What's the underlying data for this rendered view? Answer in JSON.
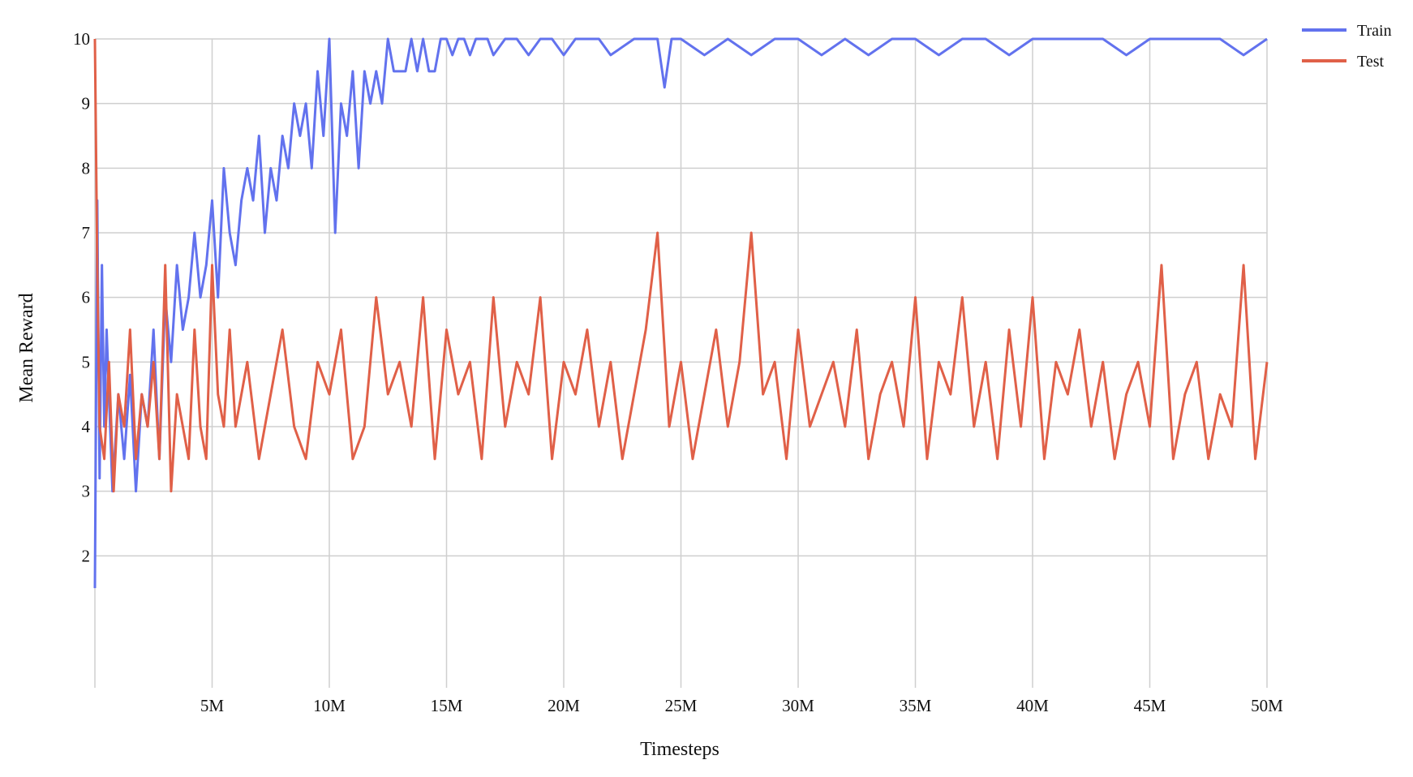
{
  "chart_data": {
    "type": "line",
    "xlabel": "Timesteps",
    "ylabel": "Mean Reward",
    "xlim": [
      0,
      50000000
    ],
    "ylim": [
      1,
      10
    ],
    "x_ticks": [
      {
        "value": 5000000,
        "label": "5M"
      },
      {
        "value": 10000000,
        "label": "10M"
      },
      {
        "value": 15000000,
        "label": "15M"
      },
      {
        "value": 20000000,
        "label": "20M"
      },
      {
        "value": 25000000,
        "label": "25M"
      },
      {
        "value": 30000000,
        "label": "30M"
      },
      {
        "value": 35000000,
        "label": "35M"
      },
      {
        "value": 40000000,
        "label": "40M"
      },
      {
        "value": 45000000,
        "label": "45M"
      },
      {
        "value": 50000000,
        "label": "50M"
      }
    ],
    "y_ticks": [
      {
        "value": 2,
        "label": "2"
      },
      {
        "value": 3,
        "label": "3"
      },
      {
        "value": 4,
        "label": "4"
      },
      {
        "value": 5,
        "label": "5"
      },
      {
        "value": 6,
        "label": "6"
      },
      {
        "value": 7,
        "label": "7"
      },
      {
        "value": 8,
        "label": "8"
      },
      {
        "value": 9,
        "label": "9"
      },
      {
        "value": 10,
        "label": "10"
      }
    ],
    "grid": true,
    "legend_position": "top-right",
    "series": [
      {
        "name": "Train",
        "color": "#6272ee",
        "x": [
          0,
          100000,
          200000,
          300000,
          400000,
          500000,
          750000,
          1000000,
          1250000,
          1500000,
          1750000,
          2000000,
          2250000,
          2500000,
          2750000,
          3000000,
          3250000,
          3500000,
          3750000,
          4000000,
          4250000,
          4500000,
          4750000,
          5000000,
          5250000,
          5500000,
          5750000,
          6000000,
          6250000,
          6500000,
          6750000,
          7000000,
          7250000,
          7500000,
          7750000,
          8000000,
          8250000,
          8500000,
          8750000,
          9000000,
          9250000,
          9500000,
          9750000,
          10000000,
          10250000,
          10500000,
          10750000,
          11000000,
          11250000,
          11500000,
          11750000,
          12000000,
          12250000,
          12500000,
          12750000,
          13000000,
          13250000,
          13500000,
          13750000,
          14000000,
          14250000,
          14500000,
          14750000,
          15000000,
          15250000,
          15500000,
          15750000,
          16000000,
          16250000,
          16500000,
          16750000,
          17000000,
          17500000,
          18000000,
          18500000,
          19000000,
          19500000,
          20000000,
          20500000,
          21000000,
          21500000,
          22000000,
          23000000,
          24000000,
          24300000,
          24600000,
          25000000,
          26000000,
          27000000,
          28000000,
          29000000,
          30000000,
          31000000,
          32000000,
          33000000,
          34000000,
          35000000,
          36000000,
          37000000,
          38000000,
          39000000,
          40000000,
          41000000,
          42000000,
          43000000,
          44000000,
          45000000,
          46000000,
          47000000,
          48000000,
          49000000,
          50000000
        ],
        "values": [
          1.5,
          7.5,
          3.2,
          6.5,
          4.0,
          5.5,
          3.0,
          4.5,
          3.5,
          4.8,
          3.0,
          4.5,
          4.0,
          5.5,
          3.5,
          6.0,
          5.0,
          6.5,
          5.5,
          6.0,
          7.0,
          6.0,
          6.5,
          7.5,
          6.0,
          8.0,
          7.0,
          6.5,
          7.5,
          8.0,
          7.5,
          8.5,
          7.0,
          8.0,
          7.5,
          8.5,
          8.0,
          9.0,
          8.5,
          9.0,
          8.0,
          9.5,
          8.5,
          10.0,
          7.0,
          9.0,
          8.5,
          9.5,
          8.0,
          9.5,
          9.0,
          9.5,
          9.0,
          10.0,
          9.5,
          9.5,
          9.5,
          10.0,
          9.5,
          10.0,
          9.5,
          9.5,
          10.0,
          10.0,
          9.75,
          10.0,
          10.0,
          9.75,
          10.0,
          10.0,
          10.0,
          9.75,
          10.0,
          10.0,
          9.75,
          10.0,
          10.0,
          9.75,
          10.0,
          10.0,
          10.0,
          9.75,
          10.0,
          10.0,
          9.25,
          10.0,
          10.0,
          9.75,
          10.0,
          9.75,
          10.0,
          10.0,
          9.75,
          10.0,
          9.75,
          10.0,
          10.0,
          9.75,
          10.0,
          10.0,
          9.75,
          10.0,
          10.0,
          10.0,
          10.0,
          9.75,
          10.0,
          10.0,
          10.0,
          10.0,
          9.75,
          10.0
        ]
      },
      {
        "name": "Test",
        "color": "#e06048",
        "x": [
          0,
          100000,
          200000,
          400000,
          600000,
          800000,
          1000000,
          1250000,
          1500000,
          1750000,
          2000000,
          2250000,
          2500000,
          2750000,
          3000000,
          3250000,
          3500000,
          3750000,
          4000000,
          4250000,
          4500000,
          4750000,
          5000000,
          5250000,
          5500000,
          5750000,
          6000000,
          6500000,
          7000000,
          7500000,
          8000000,
          8500000,
          9000000,
          9500000,
          10000000,
          10500000,
          11000000,
          11500000,
          12000000,
          12500000,
          13000000,
          13500000,
          14000000,
          14500000,
          15000000,
          15500000,
          16000000,
          16500000,
          17000000,
          17500000,
          18000000,
          18500000,
          19000000,
          19500000,
          20000000,
          20500000,
          21000000,
          21500000,
          22000000,
          22500000,
          23000000,
          23500000,
          24000000,
          24500000,
          25000000,
          25500000,
          26000000,
          26500000,
          27000000,
          27500000,
          28000000,
          28500000,
          29000000,
          29500000,
          30000000,
          30500000,
          31000000,
          31500000,
          32000000,
          32500000,
          33000000,
          33500000,
          34000000,
          34500000,
          35000000,
          35500000,
          36000000,
          36500000,
          37000000,
          37500000,
          38000000,
          38500000,
          39000000,
          39500000,
          40000000,
          40500000,
          41000000,
          41500000,
          42000000,
          42500000,
          43000000,
          43500000,
          44000000,
          44500000,
          45000000,
          45500000,
          46000000,
          46500000,
          47000000,
          47500000,
          48000000,
          48500000,
          49000000,
          49500000,
          50000000
        ],
        "values": [
          10.0,
          6.5,
          4.0,
          3.5,
          5.0,
          3.0,
          4.5,
          4.0,
          5.5,
          3.5,
          4.5,
          4.0,
          5.0,
          3.5,
          6.5,
          3.0,
          4.5,
          4.0,
          3.5,
          5.5,
          4.0,
          3.5,
          6.5,
          4.5,
          4.0,
          5.5,
          4.0,
          5.0,
          3.5,
          4.5,
          5.5,
          4.0,
          3.5,
          5.0,
          4.5,
          5.5,
          3.5,
          4.0,
          6.0,
          4.5,
          5.0,
          4.0,
          6.0,
          3.5,
          5.5,
          4.5,
          5.0,
          3.5,
          6.0,
          4.0,
          5.0,
          4.5,
          6.0,
          3.5,
          5.0,
          4.5,
          5.5,
          4.0,
          5.0,
          3.5,
          4.5,
          5.5,
          7.0,
          4.0,
          5.0,
          3.5,
          4.5,
          5.5,
          4.0,
          5.0,
          7.0,
          4.5,
          5.0,
          3.5,
          5.5,
          4.0,
          4.5,
          5.0,
          4.0,
          5.5,
          3.5,
          4.5,
          5.0,
          4.0,
          6.0,
          3.5,
          5.0,
          4.5,
          6.0,
          4.0,
          5.0,
          3.5,
          5.5,
          4.0,
          6.0,
          3.5,
          5.0,
          4.5,
          5.5,
          4.0,
          5.0,
          3.5,
          4.5,
          5.0,
          4.0,
          6.5,
          3.5,
          4.5,
          5.0,
          3.5,
          4.5,
          4.0,
          6.5,
          3.5,
          5.0
        ]
      }
    ]
  }
}
